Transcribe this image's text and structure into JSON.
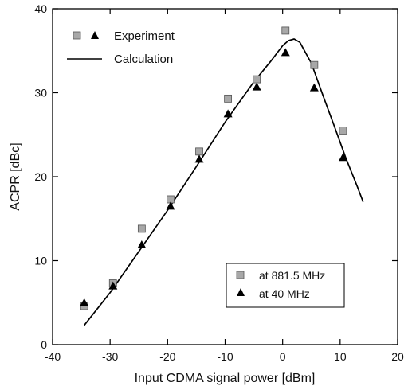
{
  "chart_data": {
    "type": "scatter",
    "title": "",
    "xlabel": "Input CDMA signal power [dBm]",
    "ylabel": "ACPR  [dBc]",
    "xlim": [
      -40,
      20
    ],
    "ylim": [
      0,
      40
    ],
    "xticks": [
      -40,
      -30,
      -20,
      -10,
      0,
      10,
      20
    ],
    "yticks": [
      0,
      10,
      20,
      30,
      40
    ],
    "grid": false,
    "legend_top": {
      "placement": "top-left",
      "experiment_label": "Experiment",
      "calculation_label": "Calculation"
    },
    "legend_bottom": {
      "placement": "bottom-right",
      "square_label": "at 881.5 MHz",
      "triangle_label": "at 40 MHz"
    },
    "series": [
      {
        "name": "at 881.5 MHz",
        "marker": "square",
        "color": "#a8a8a8",
        "x": [
          -34.5,
          -29.5,
          -24.5,
          -19.5,
          -14.5,
          -9.5,
          -4.5,
          0.5,
          5.5,
          10.5
        ],
        "y": [
          4.6,
          7.3,
          13.8,
          17.3,
          23.0,
          29.3,
          31.6,
          37.4,
          33.3,
          25.5
        ]
      },
      {
        "name": "at 40 MHz",
        "marker": "triangle",
        "color": "#000000",
        "x": [
          -34.5,
          -29.5,
          -24.5,
          -19.5,
          -14.5,
          -9.5,
          -4.5,
          0.5,
          5.5,
          10.5
        ],
        "y": [
          5.0,
          7.0,
          11.9,
          16.5,
          22.1,
          27.5,
          30.7,
          34.8,
          30.6,
          22.3
        ]
      },
      {
        "name": "Calculation",
        "marker": "line",
        "color": "#000000",
        "x": [
          -34.5,
          -30,
          -25,
          -20,
          -15,
          -10,
          -5,
          -2,
          0,
          1,
          2,
          3,
          5,
          7,
          9,
          11,
          13,
          14
        ],
        "y": [
          2.3,
          6.2,
          11.1,
          16.0,
          21.2,
          26.5,
          31.3,
          33.8,
          35.6,
          36.2,
          36.4,
          36.0,
          33.5,
          29.7,
          26.0,
          22.2,
          18.8,
          17.0
        ]
      }
    ]
  }
}
